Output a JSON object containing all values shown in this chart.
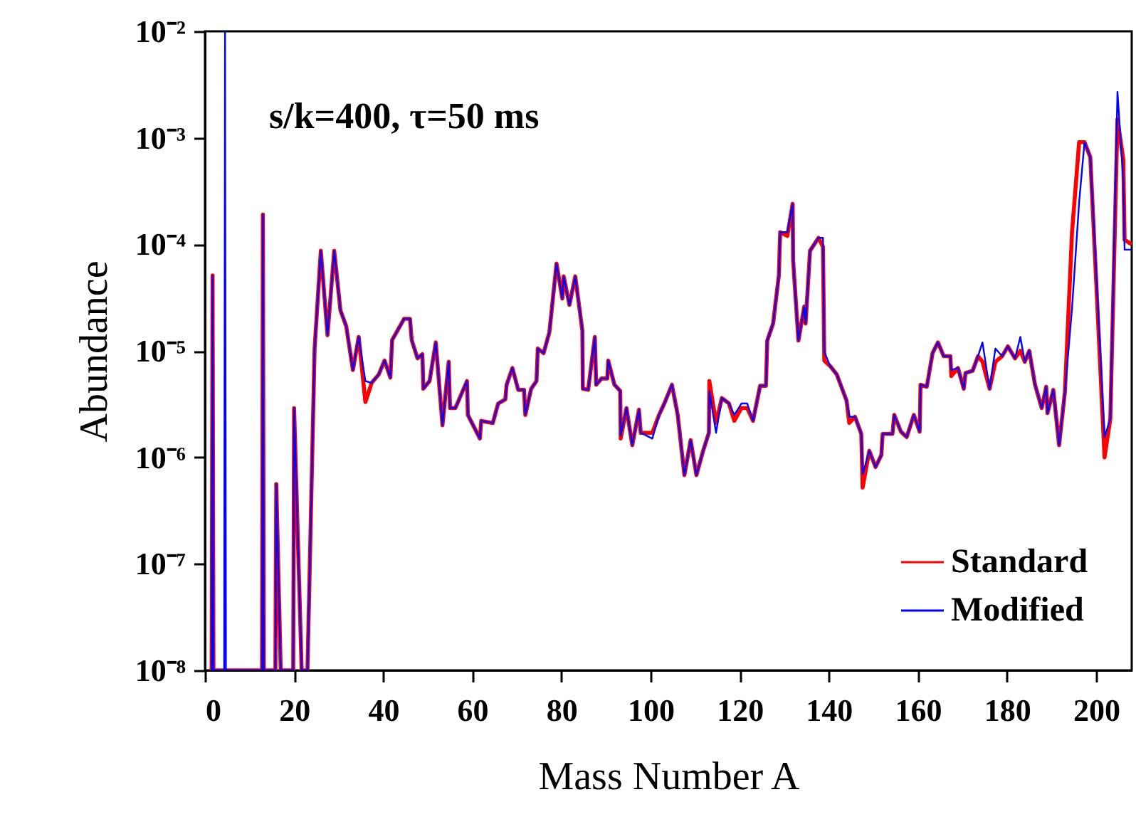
{
  "chart_data": {
    "type": "line",
    "xlabel": "Mass Number A",
    "ylabel": "Abundance",
    "annotations": [
      "s/k=400, τ=50 ms"
    ],
    "x": [
      1.5,
      1.7,
      1.9,
      4.3,
      4.5,
      4.7,
      12.8,
      13,
      13.2,
      15.8,
      16,
      17,
      19.8,
      20,
      21.7,
      23,
      24.6,
      26,
      27.5,
      29,
      30.4,
      31.7,
      33.2,
      34.5,
      36,
      37.4,
      39,
      40.3,
      41.6,
      42,
      44.7,
      46,
      46.4,
      47.7,
      48.8,
      49,
      50.4,
      51.8,
      53.3,
      54.7,
      55,
      56.2,
      58.8,
      59,
      61.7,
      62,
      64.6,
      65.8,
      67.4,
      67.7,
      69,
      70.3,
      71.6,
      71.9,
      73.2,
      74.4,
      74.7,
      76,
      77.3,
      78.9,
      80.2,
      80.5,
      81.8,
      83.1,
      84.7,
      84.8,
      86,
      87.5,
      87.8,
      89,
      90.3,
      90.5,
      91.9,
      93.2,
      93.3,
      94.6,
      95.9,
      97.4,
      97.8,
      100.4,
      101.9,
      103.1,
      104.8,
      106.1,
      107.6,
      109,
      110.3,
      111.8,
      113.1,
      113.2,
      114.7,
      116,
      117.6,
      118.8,
      120.4,
      121.7,
      123,
      124.6,
      125.9,
      126.2,
      127.5,
      128.8,
      129.1,
      130.7,
      131.9,
      132,
      133.2,
      134.5,
      134.8,
      135.8,
      137.7,
      138.7,
      139,
      140.3,
      141.8,
      144,
      144.6,
      145.9,
      147.3,
      147.6,
      149.1,
      150.5,
      151.8,
      152.1,
      154.3,
      154.7,
      156.2,
      157.5,
      159.1,
      160.4,
      160.6,
      162,
      163.3,
      164.5,
      165.8,
      167.3,
      167.5,
      169,
      170.3,
      170.7,
      172.3,
      173.5,
      174.5,
      176.1,
      177.4,
      178.9,
      180.2,
      181.8,
      183,
      184,
      185,
      186.3,
      187.8,
      188.8,
      189.1,
      190.4,
      191.7,
      193,
      194.6,
      196.2,
      197.4,
      198.7,
      201.9,
      203.2,
      204.8,
      206.1,
      206.4,
      208
    ],
    "series": [
      {
        "name": "Standard",
        "color": "#ff0000",
        "values": [
          1e-08,
          5.1e-05,
          1e-08,
          1e-08,
          1e-08,
          1e-08,
          1e-08,
          0.00019,
          1e-08,
          1e-08,
          5.6e-07,
          1e-08,
          1e-08,
          2.9e-06,
          1e-08,
          1e-08,
          1.05e-05,
          8.7e-05,
          1.4e-05,
          8.7e-05,
          2.4e-05,
          1.7e-05,
          6.6e-06,
          1.35e-05,
          3.3e-06,
          5e-06,
          6e-06,
          8.1e-06,
          5.6e-06,
          1.26e-05,
          2e-05,
          2e-05,
          1.26e-05,
          8.5e-06,
          9.3e-06,
          4.4e-06,
          5.2e-06,
          1.2e-05,
          2e-06,
          7.9e-06,
          2.9e-06,
          2.9e-06,
          5.2e-06,
          2.5e-06,
          1.5e-06,
          2.2e-06,
          2.1e-06,
          3.2e-06,
          3.5e-06,
          4.8e-06,
          6.9e-06,
          4.3e-06,
          4.3e-06,
          2.5e-06,
          4.4e-06,
          5.2e-06,
          1.05e-05,
          9.5e-06,
          1.5e-05,
          6.6e-05,
          3.1e-05,
          5e-05,
          2.7e-05,
          5e-05,
          1.55e-05,
          4.4e-06,
          4.3e-06,
          1.35e-05,
          4.8e-06,
          5.5e-06,
          5.5e-06,
          8.1e-06,
          4.8e-06,
          4.2e-06,
          1.5e-06,
          2.9e-06,
          1.3e-06,
          2.8e-06,
          1.7e-06,
          1.7e-06,
          2.5e-06,
          3.2e-06,
          4.8e-06,
          2.5e-06,
          6.8e-07,
          1.45e-06,
          6.8e-07,
          1.15e-06,
          1.7e-06,
          5.2e-06,
          2.1e-06,
          3.6e-06,
          3.2e-06,
          2.2e-06,
          2.9e-06,
          2.9e-06,
          2.2e-06,
          4.7e-06,
          4.7e-06,
          1.25e-05,
          1.8e-05,
          5.1e-05,
          0.00013,
          0.00012,
          0.00024,
          7.1e-05,
          1.25e-05,
          2.6e-05,
          1.8e-05,
          8.7e-05,
          0.000115,
          9.5e-05,
          8.1e-06,
          7.2e-06,
          6e-06,
          3.4e-06,
          2.1e-06,
          2.4e-06,
          1.66e-06,
          5.2e-07,
          1.15e-06,
          8.1e-07,
          1.05e-06,
          1.66e-06,
          1.66e-06,
          2.5e-06,
          1.74e-06,
          1.55e-06,
          2.5e-06,
          1.74e-06,
          4.8e-06,
          4.6e-06,
          9.5e-06,
          1.2e-05,
          8.9e-06,
          8.9e-06,
          5.8e-06,
          6.9e-06,
          4.4e-06,
          6.2e-06,
          6.5e-06,
          8.9e-06,
          7.9e-06,
          4.4e-06,
          7.9e-06,
          8.9e-06,
          1.1e-05,
          8.5e-06,
          1e-05,
          7.9e-06,
          1e-05,
          4.8e-06,
          2.9e-06,
          4.6e-06,
          2.6e-06,
          4.3e-06,
          1.3e-06,
          4.1e-06,
          0.00013,
          0.00091,
          0.00091,
          0.00066,
          1e-06,
          2.3e-06,
          0.0015,
          0.00063,
          0.00011,
          0.0001
        ]
      },
      {
        "name": "Modified",
        "color": "#0000ff",
        "values": [
          1e-08,
          5.1e-05,
          1e-08,
          1e-08,
          0.01,
          1e-08,
          1e-08,
          0.00019,
          1e-08,
          1e-08,
          5.6e-07,
          1e-08,
          1e-08,
          2.9e-06,
          1e-08,
          1e-08,
          1.05e-05,
          8.7e-05,
          1.4e-05,
          8.7e-05,
          2.4e-05,
          1.7e-05,
          6.6e-06,
          1.35e-05,
          5.2e-06,
          5e-06,
          6e-06,
          8.1e-06,
          5.6e-06,
          1.26e-05,
          2e-05,
          2e-05,
          1.26e-05,
          8.5e-06,
          9.3e-06,
          4.4e-06,
          5.2e-06,
          1.2e-05,
          2e-06,
          7.9e-06,
          2.9e-06,
          2.9e-06,
          5.2e-06,
          2.5e-06,
          1.5e-06,
          2.2e-06,
          2.1e-06,
          3.2e-06,
          3.5e-06,
          4.8e-06,
          6.9e-06,
          4.3e-06,
          4.3e-06,
          2.5e-06,
          4.4e-06,
          5.2e-06,
          1.05e-05,
          9.5e-06,
          1.5e-05,
          6.6e-05,
          3.1e-05,
          5e-05,
          2.7e-05,
          5e-05,
          1.55e-05,
          4.4e-06,
          4.3e-06,
          1.35e-05,
          4.8e-06,
          5.5e-06,
          5.5e-06,
          8.1e-06,
          4.8e-06,
          4.2e-06,
          1.6e-06,
          2.9e-06,
          1.3e-06,
          2.8e-06,
          1.7e-06,
          1.5e-06,
          2.5e-06,
          3.2e-06,
          4.8e-06,
          2.5e-06,
          6.8e-07,
          1.45e-06,
          6.8e-07,
          1.15e-06,
          1.7e-06,
          4.2e-06,
          1.7e-06,
          3.6e-06,
          3.2e-06,
          2.5e-06,
          3.2e-06,
          3.2e-06,
          2.2e-06,
          4.7e-06,
          4.7e-06,
          1.25e-05,
          1.8e-05,
          5.1e-05,
          0.00013,
          0.00013,
          0.00024,
          7.1e-05,
          1.25e-05,
          2.6e-05,
          1.8e-05,
          8.7e-05,
          0.000115,
          0.000115,
          9.8e-06,
          7.2e-06,
          6e-06,
          3.4e-06,
          2.4e-06,
          2.4e-06,
          1.66e-06,
          6.9e-07,
          1.15e-06,
          8.1e-07,
          1.05e-06,
          1.66e-06,
          1.66e-06,
          2.5e-06,
          1.74e-06,
          1.55e-06,
          2.5e-06,
          1.74e-06,
          4.8e-06,
          4.6e-06,
          9.5e-06,
          1.2e-05,
          8.9e-06,
          8.9e-06,
          6.6e-06,
          6.9e-06,
          4.4e-06,
          6.2e-06,
          6.5e-06,
          8.9e-06,
          1.2e-05,
          4.4e-06,
          1.05e-05,
          8.9e-06,
          1.1e-05,
          8.5e-06,
          1.35e-05,
          7.9e-06,
          1e-05,
          4.8e-06,
          2.9e-06,
          4.6e-06,
          2.6e-06,
          4.3e-06,
          1.3e-06,
          4.1e-06,
          2.5e-05,
          0.00025,
          0.00091,
          0.00066,
          1.55e-06,
          2.3e-06,
          0.0027,
          0.0004,
          8.9e-05,
          8.9e-05
        ]
      }
    ],
    "xlim": [
      0,
      208
    ],
    "xticks": [
      0,
      20,
      40,
      60,
      80,
      100,
      120,
      140,
      160,
      180,
      200
    ],
    "ylim": [
      1e-08,
      0.01
    ],
    "yticks": [
      {
        "value": 1e-08,
        "label": "10⁻⁸"
      },
      {
        "value": 1e-07,
        "label": "10⁻⁷"
      },
      {
        "value": 1e-06,
        "label": "10⁻⁶"
      },
      {
        "value": 1e-05,
        "label": "10⁻⁵"
      },
      {
        "value": 0.0001,
        "label": "10⁻⁴"
      },
      {
        "value": 0.001,
        "label": "10⁻³"
      },
      {
        "value": 0.01,
        "label": "10⁻²"
      }
    ],
    "log": true,
    "grid": false,
    "legend": "bottom right",
    "line_style": "solid",
    "marker": "none"
  }
}
